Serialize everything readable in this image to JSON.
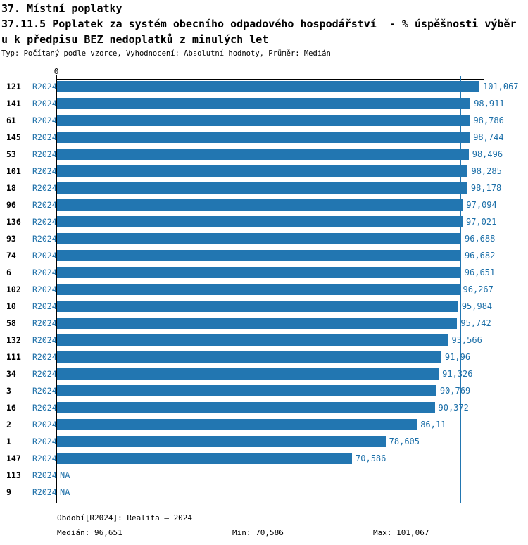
{
  "page": {
    "title": "37. Místní poplatky",
    "subtitle_line1": "37.11.5 Poplatek za systém obecního odpadového hospodářství  - % úspěšnosti výběr",
    "subtitle_line2": "u k předpisu BEZ nedoplatků z minulých let",
    "meta_line": "Typ: Počítaný podle vzorce, Vyhodnocení: Absolutní hodnoty, Průměr: Medián"
  },
  "chart_data": {
    "type": "bar",
    "orientation": "horizontal",
    "title": "37.11.5 Poplatek za systém obecního odpadového hospodářství - % úspěšnosti výběru k předpisu BEZ nedoplatků z minulých let",
    "xlabel": "",
    "ylabel": "",
    "xlim": [
      0,
      101.067
    ],
    "x_zero_label": "0",
    "grid": false,
    "legend_position": "none",
    "series_name": "R2024",
    "median": {
      "value": 96.651,
      "label": "96,651"
    },
    "rows": [
      {
        "id": "121",
        "period": "R2024",
        "value": 101.067,
        "value_label": "101,067"
      },
      {
        "id": "141",
        "period": "R2024",
        "value": 98.911,
        "value_label": "98,911"
      },
      {
        "id": "61",
        "period": "R2024",
        "value": 98.786,
        "value_label": "98,786"
      },
      {
        "id": "145",
        "period": "R2024",
        "value": 98.744,
        "value_label": "98,744"
      },
      {
        "id": "53",
        "period": "R2024",
        "value": 98.496,
        "value_label": "98,496"
      },
      {
        "id": "101",
        "period": "R2024",
        "value": 98.285,
        "value_label": "98,285"
      },
      {
        "id": "18",
        "period": "R2024",
        "value": 98.178,
        "value_label": "98,178"
      },
      {
        "id": "96",
        "period": "R2024",
        "value": 97.094,
        "value_label": "97,094"
      },
      {
        "id": "136",
        "period": "R2024",
        "value": 97.021,
        "value_label": "97,021"
      },
      {
        "id": "93",
        "period": "R2024",
        "value": 96.688,
        "value_label": "96,688"
      },
      {
        "id": "74",
        "period": "R2024",
        "value": 96.682,
        "value_label": "96,682"
      },
      {
        "id": "6",
        "period": "R2024",
        "value": 96.651,
        "value_label": "96,651"
      },
      {
        "id": "102",
        "period": "R2024",
        "value": 96.267,
        "value_label": "96,267"
      },
      {
        "id": "10",
        "period": "R2024",
        "value": 95.984,
        "value_label": "95,984"
      },
      {
        "id": "58",
        "period": "R2024",
        "value": 95.742,
        "value_label": "95,742"
      },
      {
        "id": "132",
        "period": "R2024",
        "value": 93.566,
        "value_label": "93,566"
      },
      {
        "id": "111",
        "period": "R2024",
        "value": 91.96,
        "value_label": "91,96"
      },
      {
        "id": "34",
        "period": "R2024",
        "value": 91.326,
        "value_label": "91,326"
      },
      {
        "id": "3",
        "period": "R2024",
        "value": 90.769,
        "value_label": "90,769"
      },
      {
        "id": "16",
        "period": "R2024",
        "value": 90.372,
        "value_label": "90,372"
      },
      {
        "id": "2",
        "period": "R2024",
        "value": 86.11,
        "value_label": "86,11"
      },
      {
        "id": "1",
        "period": "R2024",
        "value": 78.605,
        "value_label": "78,605"
      },
      {
        "id": "147",
        "period": "R2024",
        "value": 70.586,
        "value_label": "70,586"
      },
      {
        "id": "113",
        "period": "R2024",
        "value": null,
        "value_label": "NA"
      },
      {
        "id": "9",
        "period": "R2024",
        "value": null,
        "value_label": "NA"
      }
    ]
  },
  "colors": {
    "bar": "#2276B1",
    "median_line": "#2276B1",
    "blue_text": "#1C6FA8",
    "axis": "#000000"
  },
  "footer": {
    "period": "Období[R2024]: Realita – 2024",
    "median": "Medián: 96,651",
    "min": "Min: 70,586",
    "max": "Max: 101,067"
  }
}
